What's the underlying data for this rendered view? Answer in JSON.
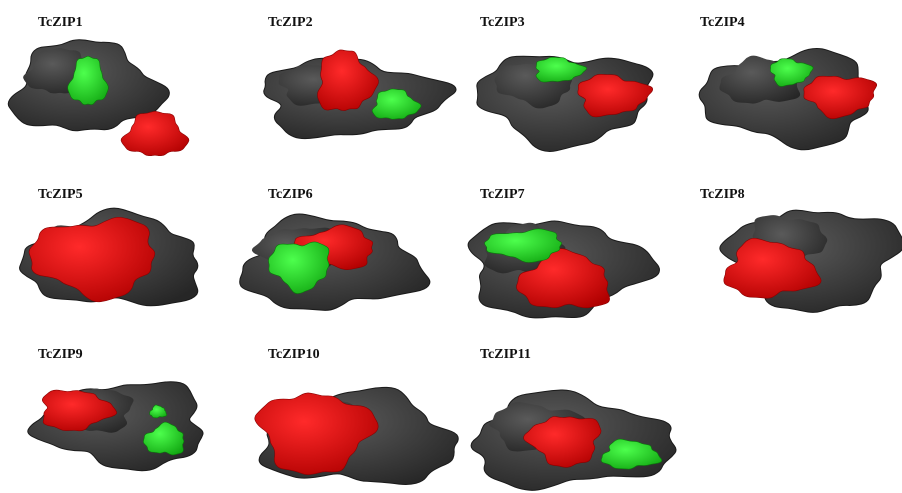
{
  "panels": [
    {
      "title": "TcZIP1"
    },
    {
      "title": "TcZIP2"
    },
    {
      "title": "TcZIP3"
    },
    {
      "title": "TcZIP4"
    },
    {
      "title": "TcZIP5"
    },
    {
      "title": "TcZIP6"
    },
    {
      "title": "TcZIP7"
    },
    {
      "title": "TcZIP8"
    },
    {
      "title": "TcZIP9"
    },
    {
      "title": "TcZIP10"
    },
    {
      "title": "TcZIP11"
    }
  ]
}
